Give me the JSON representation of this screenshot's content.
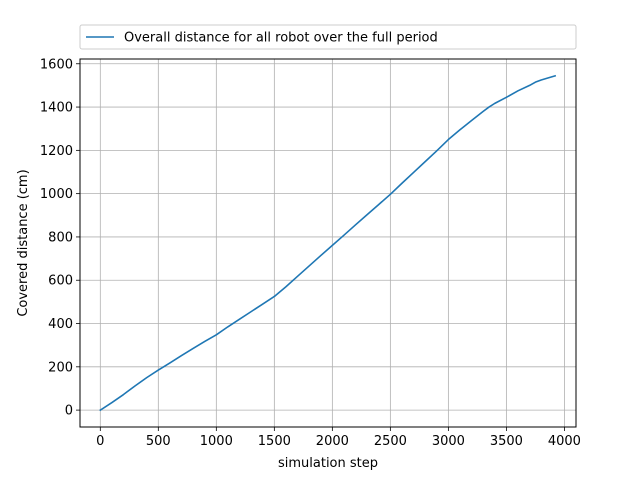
{
  "chart_data": {
    "type": "line",
    "xlabel": "simulation step",
    "ylabel": "Covered distance (cm)",
    "xlim": [
      -175,
      4100
    ],
    "ylim": [
      -78,
      1622
    ],
    "xticks": [
      0,
      500,
      1000,
      1500,
      2000,
      2500,
      3000,
      3500,
      4000
    ],
    "yticks": [
      0,
      200,
      400,
      600,
      800,
      1000,
      1200,
      1400,
      1600
    ],
    "grid": true,
    "legend_position": "top",
    "series": [
      {
        "name": "Overall distance for all robot over the full period",
        "color": "#1f77b4",
        "x": [
          0,
          100,
          200,
          300,
          400,
          500,
          600,
          700,
          800,
          900,
          1000,
          1100,
          1200,
          1300,
          1400,
          1500,
          1600,
          1700,
          1800,
          1900,
          2000,
          2100,
          2200,
          2300,
          2400,
          2500,
          2600,
          2700,
          2800,
          2900,
          3000,
          3100,
          3200,
          3300,
          3350,
          3400,
          3500,
          3600,
          3700,
          3750,
          3800,
          3850,
          3920
        ],
        "y": [
          0,
          35,
          72,
          112,
          150,
          185,
          218,
          252,
          285,
          317,
          348,
          385,
          420,
          455,
          490,
          525,
          570,
          618,
          666,
          714,
          761,
          808,
          856,
          903,
          950,
          997,
          1048,
          1098,
          1148,
          1198,
          1250,
          1295,
          1338,
          1380,
          1400,
          1417,
          1445,
          1475,
          1500,
          1515,
          1525,
          1533,
          1544
        ]
      }
    ]
  }
}
